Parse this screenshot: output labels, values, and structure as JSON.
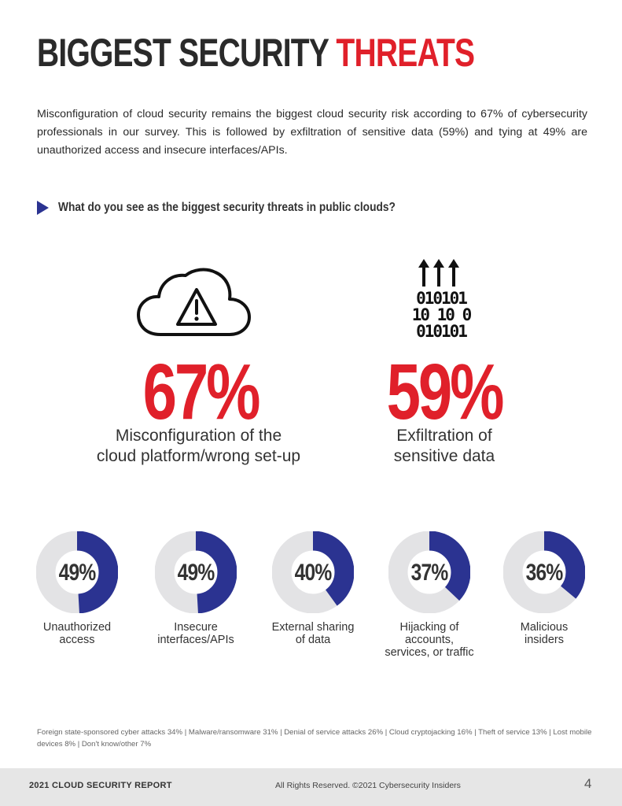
{
  "header": {
    "title_main": "BIGGEST SECURITY ",
    "title_accent": "THREATS"
  },
  "intro": "Misconfiguration of cloud security remains the biggest cloud security risk according to 67% of cybersecurity professionals in our survey. This is followed by exfiltration of sensitive data (59%) and tying at 49% are unauthorized access and insecure interfaces/APIs.",
  "question": "What do you see as the biggest security threats in public clouds?",
  "highlights": [
    {
      "value": "67%",
      "label": "Misconfiguration of the\ncloud platform/wrong set-up",
      "icon": "cloud-warning-icon"
    },
    {
      "value": "59%",
      "label": "Exfiltration of\nsensitive data",
      "icon": "binary-data-upload-icon"
    }
  ],
  "binary_rows": [
    "010101",
    "10 10 0",
    "010101"
  ],
  "accent_color": "#e0202a",
  "donut_color": "#2b3391",
  "donut_track_color": "#e3e3e5",
  "chart_data": {
    "type": "donut",
    "categories": [
      "Unauthorized access",
      "Insecure interfaces/APIs",
      "External sharing of data",
      "Hijacking of accounts, services, or traffic",
      "Malicious insiders"
    ],
    "values": [
      49,
      49,
      40,
      37,
      36
    ],
    "value_labels": [
      "49%",
      "49%",
      "40%",
      "37%",
      "36%"
    ],
    "display_labels": [
      "Unauthorized\naccess",
      "Insecure\ninterfaces/APIs",
      "External sharing\nof data",
      "Hijacking of\naccounts,\nservices, or traffic",
      "Malicious\ninsiders"
    ],
    "max": 100
  },
  "others": "Foreign state-sponsored cyber attacks 34%  |  Malware/ransomware 31%  |  Denial of service attacks 26%  | Cloud cryptojacking 16%  |  Theft of service 13%  |  Lost mobile devices  8%  |  Don't know/other 7%",
  "footer": {
    "left": "2021 CLOUD SECURITY REPORT",
    "middle": "All Rights Reserved.  ©2021  Cybersecurity Insiders",
    "page": "4"
  }
}
